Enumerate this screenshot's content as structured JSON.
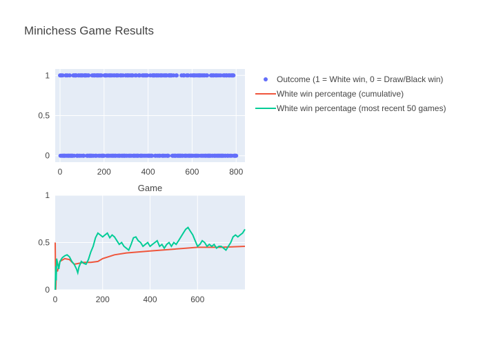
{
  "chart_data": {
    "title": "Minichess Game Results",
    "subplots": [
      {
        "id": "top",
        "type": "scatter",
        "xlim": [
          -22,
          840
        ],
        "ylim": [
          -0.08,
          1.08
        ],
        "xticks": [
          0,
          200,
          400,
          600,
          800
        ],
        "yticks": [
          0,
          0.5,
          1
        ],
        "xlabel": "Game",
        "ylabel": "",
        "grid": true,
        "series": [
          {
            "name": "Outcome (1 = White win, 0 = Draw/Black win)",
            "color": "#636efa",
            "x_range": [
              0,
              800
            ],
            "values_shown": [
              0,
              1
            ]
          }
        ]
      },
      {
        "id": "bottom",
        "type": "line",
        "xlim": [
          0,
          800
        ],
        "ylim": [
          0,
          1
        ],
        "xticks": [
          0,
          200,
          400,
          600
        ],
        "yticks": [
          0,
          0.5,
          1
        ],
        "xlabel": "",
        "ylabel": "",
        "grid": true,
        "series": [
          {
            "name": "White win percentage (cumulative)",
            "color": "#ef553b",
            "x": [
              0,
              2,
              5,
              10,
              20,
              40,
              60,
              80,
              100,
              120,
              150,
              180,
              200,
              250,
              300,
              400,
              500,
              550,
              600,
              700,
              800
            ],
            "values": [
              0.5,
              0.0,
              0.2,
              0.2,
              0.3,
              0.33,
              0.32,
              0.27,
              0.28,
              0.29,
              0.29,
              0.3,
              0.33,
              0.37,
              0.39,
              0.41,
              0.43,
              0.44,
              0.45,
              0.45,
              0.46
            ]
          },
          {
            "name": "White win percentage (most recent 50 games)",
            "color": "#00cc96",
            "x": [
              0,
              2,
              4,
              6,
              10,
              15,
              20,
              30,
              40,
              50,
              60,
              70,
              80,
              90,
              95,
              100,
              110,
              120,
              130,
              140,
              150,
              160,
              170,
              180,
              190,
              200,
              210,
              220,
              230,
              240,
              250,
              260,
              270,
              280,
              290,
              300,
              310,
              320,
              330,
              340,
              350,
              360,
              370,
              380,
              390,
              400,
              410,
              420,
              430,
              440,
              450,
              460,
              470,
              480,
              490,
              500,
              510,
              520,
              530,
              540,
              550,
              560,
              570,
              580,
              590,
              600,
              610,
              620,
              630,
              640,
              650,
              660,
              670,
              680,
              690,
              700,
              710,
              720,
              730,
              740,
              750,
              760,
              770,
              780,
              790,
              800
            ],
            "values": [
              0.0,
              0.25,
              0.1,
              0.33,
              0.28,
              0.22,
              0.3,
              0.34,
              0.36,
              0.37,
              0.35,
              0.3,
              0.27,
              0.22,
              0.18,
              0.24,
              0.3,
              0.28,
              0.27,
              0.32,
              0.4,
              0.46,
              0.55,
              0.6,
              0.58,
              0.56,
              0.58,
              0.6,
              0.55,
              0.58,
              0.56,
              0.52,
              0.48,
              0.5,
              0.46,
              0.44,
              0.42,
              0.48,
              0.55,
              0.56,
              0.52,
              0.5,
              0.46,
              0.48,
              0.5,
              0.46,
              0.48,
              0.5,
              0.52,
              0.46,
              0.48,
              0.44,
              0.48,
              0.5,
              0.46,
              0.5,
              0.48,
              0.52,
              0.56,
              0.6,
              0.64,
              0.66,
              0.62,
              0.58,
              0.52,
              0.46,
              0.48,
              0.52,
              0.5,
              0.46,
              0.48,
              0.46,
              0.48,
              0.44,
              0.46,
              0.46,
              0.44,
              0.42,
              0.46,
              0.5,
              0.56,
              0.58,
              0.56,
              0.58,
              0.6,
              0.64
            ]
          }
        ]
      }
    ],
    "legend_position": "top-right"
  }
}
